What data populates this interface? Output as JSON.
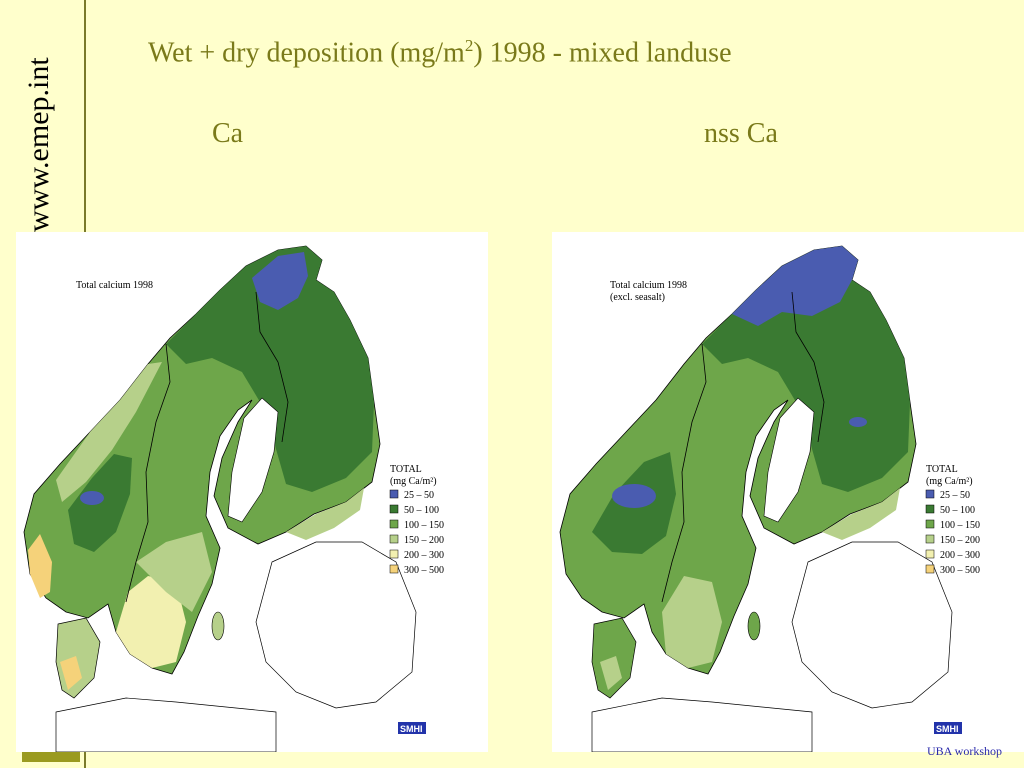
{
  "sidebar": {
    "url": "www.emep.int"
  },
  "header": {
    "title_main": "Wet + dry deposition (mg/m",
    "title_sup": "2",
    "title_rest": ") 1998 - mixed landuse"
  },
  "maps": [
    {
      "heading": "Ca",
      "map_title_1": "Total calcium 1998",
      "map_title_2": "",
      "legend_title_1": "TOTAL",
      "legend_title_2": "(mg Ca/m²)",
      "logo": "SMHI"
    },
    {
      "heading": "nss Ca",
      "map_title_1": "Total calcium 1998",
      "map_title_2": "(excl. seasalt)",
      "legend_title_1": "TOTAL",
      "legend_title_2": "(mg Ca/m²)",
      "logo": "SMHI"
    }
  ],
  "legend_classes": [
    {
      "label": "25 – 50",
      "color": "#4a5cb0"
    },
    {
      "label": "50 – 100",
      "color": "#3a7a32"
    },
    {
      "label": "100 – 150",
      "color": "#6ea64a"
    },
    {
      "label": "150 – 200",
      "color": "#b6d08a"
    },
    {
      "label": "200 – 300",
      "color": "#f2f0b0"
    },
    {
      "label": "300 – 500",
      "color": "#f5d27a"
    }
  ],
  "footer": {
    "text": "UBA workshop"
  }
}
